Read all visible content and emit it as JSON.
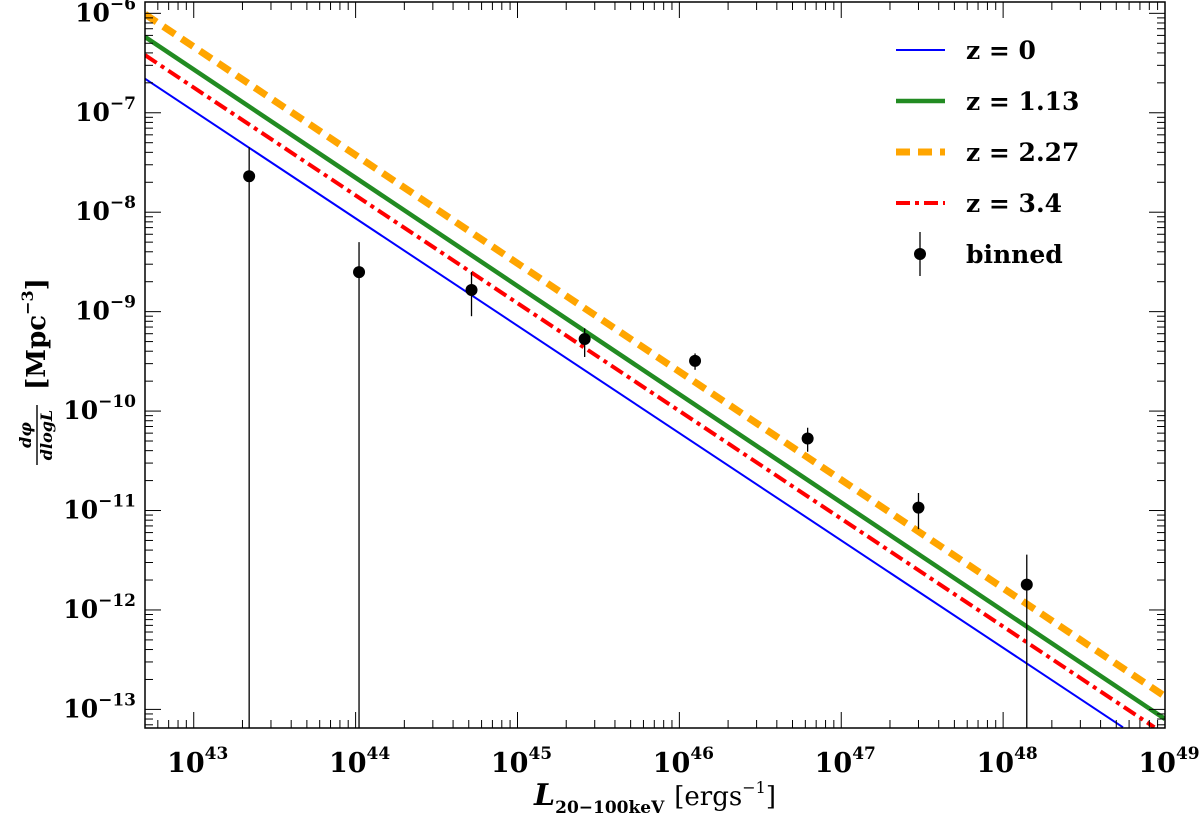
{
  "chart_data": {
    "type": "line",
    "log_x": true,
    "log_y": true,
    "xlim": [
      5e+42,
      1e+49
    ],
    "ylim": [
      6.5e-14,
      1.3e-06
    ],
    "x_tick_exponents": [
      43,
      44,
      45,
      46,
      47,
      48,
      49
    ],
    "y_tick_exponents": [
      -13,
      -12,
      -11,
      -10,
      -9,
      -8,
      -7,
      -6
    ],
    "tick_base": "10",
    "xlabel": {
      "symbol": "L",
      "subscript": "20−100keV",
      "unit_prefix": "[ergs",
      "unit_exp": "−1",
      "unit_suffix": "]"
    },
    "ylabel": {
      "numerator": "dφ",
      "denominator": "dlogL",
      "unit_prefix": "[Mpc",
      "unit_exp": "−3",
      "unit_suffix": "]"
    },
    "legend_position": "top-right",
    "series": [
      {
        "name": "z = 0",
        "color": "#0000ff",
        "style": "solid",
        "x": [
          5e+42,
          5.5e+48
        ],
        "y": [
          2.2e-07,
          6.6e-14
        ]
      },
      {
        "name": "z = 1.13",
        "color": "#228b22",
        "style": "solid-thick",
        "x": [
          5e+42,
          1e+49
        ],
        "y": [
          5.8e-07,
          8e-14
        ]
      },
      {
        "name": "z = 2.27",
        "color": "#ffa500",
        "style": "dashed",
        "x": [
          5e+42,
          1e+49
        ],
        "y": [
          9.8e-07,
          1.35e-13
        ]
      },
      {
        "name": "z = 3.4",
        "color": "#ff0000",
        "style": "dashdot",
        "x": [
          5e+42,
          8.6e+48
        ],
        "y": [
          3.8e-07,
          6.6e-14
        ]
      }
    ],
    "points": {
      "name": "binned",
      "color": "#000000",
      "data": [
        {
          "x": 2.2e+43,
          "y": 2.3e-08,
          "ylo": 6.5e-14,
          "yhi": 4.5e-08
        },
        {
          "x": 1.05e+44,
          "y": 2.5e-09,
          "ylo": 6.5e-14,
          "yhi": 5e-09
        },
        {
          "x": 5.2e+44,
          "y": 1.65e-09,
          "ylo": 9e-10,
          "yhi": 2.5e-09
        },
        {
          "x": 2.6e+45,
          "y": 5.3e-10,
          "ylo": 3.5e-10,
          "yhi": 6.8e-10
        },
        {
          "x": 1.25e+46,
          "y": 3.2e-10,
          "ylo": 2.6e-10,
          "yhi": 3.8e-10
        },
        {
          "x": 6.2e+46,
          "y": 5.3e-11,
          "ylo": 3.9e-11,
          "yhi": 6.8e-11
        },
        {
          "x": 3e+47,
          "y": 1.07e-11,
          "ylo": 6.5e-12,
          "yhi": 1.5e-11
        },
        {
          "x": 1.4e+48,
          "y": 1.8e-12,
          "ylo": 6.5e-14,
          "yhi": 3.6e-12
        }
      ]
    }
  }
}
